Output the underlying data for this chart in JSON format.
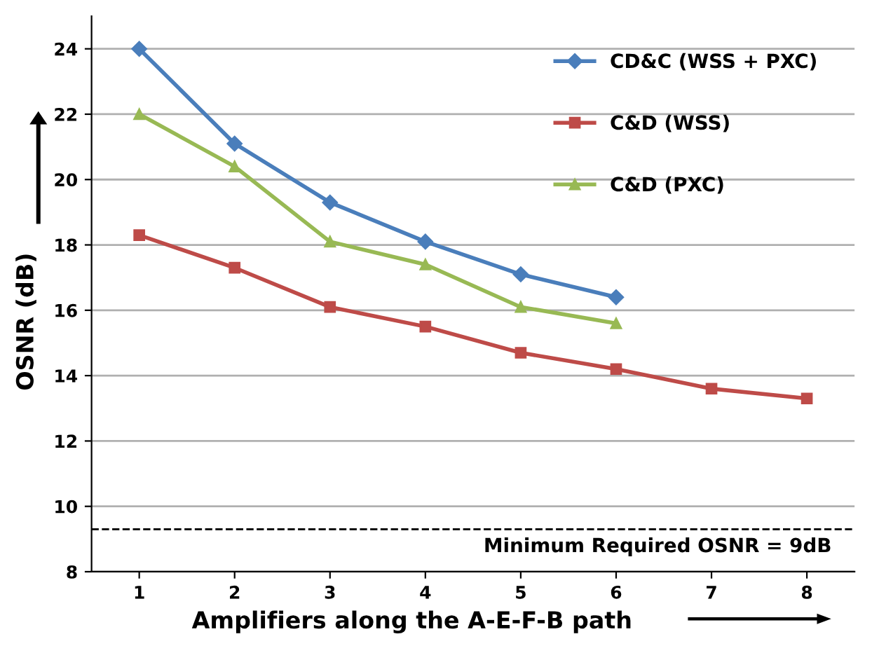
{
  "chart_data": {
    "type": "line",
    "xlabel": "Amplifiers along the A-E-F-B path",
    "ylabel": "OSNR (dB)",
    "categories": [
      "1",
      "2",
      "3",
      "4",
      "5",
      "6",
      "7",
      "8"
    ],
    "series": [
      {
        "name": "CD&C (WSS + PXC)",
        "color": "#4a7ebb",
        "marker": "diamond",
        "values": [
          24,
          21.1,
          19.3,
          18.1,
          17.1,
          16.4,
          null,
          null
        ]
      },
      {
        "name": "C&D (WSS)",
        "color": "#be4b48",
        "marker": "square",
        "values": [
          18.3,
          17.3,
          16.1,
          15.5,
          14.7,
          14.2,
          13.6,
          13.3
        ]
      },
      {
        "name": "C&D (PXC)",
        "color": "#98b954",
        "marker": "triangle",
        "values": [
          22,
          20.4,
          18.1,
          17.4,
          16.1,
          15.6,
          null,
          null
        ]
      }
    ],
    "ylim": [
      8,
      25
    ],
    "yticks": [
      8,
      10,
      12,
      14,
      16,
      18,
      20,
      22,
      24
    ],
    "grid": "y",
    "legend": "top right",
    "ref_lines": [
      {
        "axis": "y",
        "value": 9.3,
        "label": "Minimum Required OSNR = 9dB",
        "color": "#000000",
        "line_style": "dashed"
      }
    ]
  }
}
